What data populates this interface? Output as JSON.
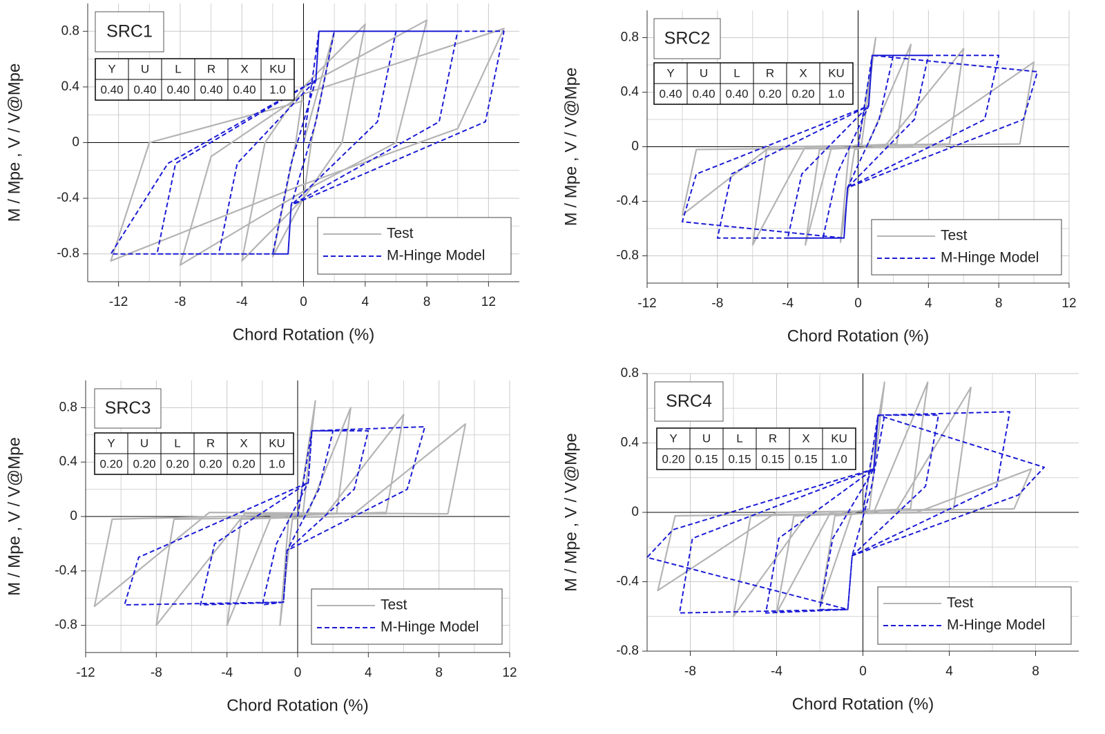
{
  "chart_data": [
    {
      "type": "line",
      "label": "SRC1",
      "x_label": "Chord Rotation (%)",
      "y_label": "M / Mpe , V / V@Mpe",
      "xlim": [
        -14,
        14
      ],
      "ylim": [
        -1,
        1
      ],
      "xticks": [
        -12,
        -8,
        -4,
        0,
        4,
        8,
        12
      ],
      "yticks": [
        -0.8,
        -0.4,
        0,
        0.4,
        0.8
      ],
      "grid": true,
      "legend": "lower right",
      "params": {
        "headers": [
          "Y",
          "U",
          "L",
          "R",
          "X",
          "KU"
        ],
        "values": [
          "0.40",
          "0.40",
          "0.40",
          "0.40",
          "0.40",
          "1.0"
        ]
      },
      "series": [
        {
          "name": "Test",
          "color": "#b4b4b4",
          "style": "solid",
          "x": [
            0,
            2,
            0.5,
            0,
            -2,
            -0.5,
            0,
            4,
            2.5,
            0,
            -4,
            -2.5,
            0,
            8,
            6,
            0,
            -8,
            -6,
            0,
            13,
            10,
            0,
            -12.5,
            -10,
            0
          ],
          "values": [
            0,
            0.8,
            0,
            -0.4,
            -0.82,
            0,
            0.4,
            0.85,
            0,
            -0.4,
            -0.85,
            0,
            0.4,
            0.88,
            0,
            -0.35,
            -0.88,
            -0.1,
            0.35,
            0.82,
            0.1,
            -0.3,
            -0.85,
            0,
            0.3
          ]
        },
        {
          "name": "M-Hinge Model",
          "color": "#1a1ad6",
          "style": "dashed",
          "x": [
            0,
            1,
            2,
            0.8,
            -0.8,
            -1,
            -2,
            -0.8,
            0.8,
            1,
            6,
            4.8,
            -0.8,
            -1,
            -5.5,
            -4.3,
            0.8,
            1,
            10,
            8.8,
            -0.8,
            -1,
            -9.5,
            -8.3,
            0.8,
            1,
            13,
            11.8,
            -0.8,
            -1,
            -12.5,
            -8.8,
            0.8
          ],
          "values": [
            0,
            0.8,
            0.8,
            0.15,
            -0.45,
            -0.8,
            -0.8,
            -0.15,
            0.45,
            0.8,
            0.8,
            0.15,
            -0.45,
            -0.8,
            -0.8,
            -0.15,
            0.45,
            0.8,
            0.8,
            0.15,
            -0.45,
            -0.8,
            -0.8,
            -0.15,
            0.45,
            0.8,
            0.8,
            0.15,
            -0.45,
            -0.8,
            -0.8,
            -0.15,
            0.45
          ]
        }
      ]
    },
    {
      "type": "line",
      "label": "SRC2",
      "x_label": "Chord Rotation (%)",
      "y_label": "M / Mpe , V / V@Mpe",
      "xlim": [
        -12,
        12
      ],
      "ylim": [
        -1,
        1
      ],
      "xticks": [
        -12,
        -8,
        -4,
        0,
        4,
        8,
        12
      ],
      "yticks": [
        -0.8,
        -0.4,
        0,
        0.4,
        0.8
      ],
      "grid": true,
      "legend": "lower right",
      "params": {
        "headers": [
          "Y",
          "U",
          "L",
          "R",
          "X",
          "KU"
        ],
        "values": [
          "0.40",
          "0.40",
          "0.40",
          "0.20",
          "0.20",
          "1.0"
        ]
      },
      "series": [
        {
          "name": "Test",
          "color": "#b4b4b4",
          "style": "solid",
          "x": [
            0,
            1,
            0.2,
            -0.5,
            -1,
            -0.2,
            0.5,
            3,
            2.2,
            -1.5,
            -3,
            -2.2,
            1.5,
            6,
            5.2,
            -3,
            -6,
            -5.2,
            3,
            10,
            9.2,
            -5,
            -10,
            -9.2,
            5
          ],
          "values": [
            0,
            0.8,
            0.02,
            0,
            -0.7,
            -0.02,
            0,
            0.75,
            0.02,
            0,
            -0.72,
            -0.02,
            0,
            0.72,
            0.02,
            0,
            -0.72,
            -0.02,
            0,
            0.62,
            0.02,
            0,
            -0.5,
            -0.02,
            0
          ]
        },
        {
          "name": "M-Hinge Model",
          "color": "#1a1ad6",
          "style": "dashed",
          "x": [
            0,
            0.8,
            2,
            1.2,
            -0.6,
            -0.8,
            -2,
            -1.2,
            0.6,
            0.8,
            4,
            3.2,
            -0.6,
            -0.8,
            -4,
            -3.2,
            0.6,
            0.8,
            8,
            7.2,
            -0.6,
            -0.8,
            -8,
            -7.2,
            0.6,
            0.8,
            10.2,
            9.4,
            -0.6,
            -0.8,
            -10,
            -9.2,
            0.6
          ],
          "values": [
            0,
            0.67,
            0.67,
            0.2,
            -0.3,
            -0.67,
            -0.67,
            -0.2,
            0.3,
            0.67,
            0.67,
            0.2,
            -0.3,
            -0.67,
            -0.67,
            -0.2,
            0.3,
            0.67,
            0.67,
            0.2,
            -0.3,
            -0.67,
            -0.67,
            -0.2,
            0.3,
            0.67,
            0.55,
            0.2,
            -0.3,
            -0.67,
            -0.55,
            -0.2,
            0.3
          ]
        }
      ]
    },
    {
      "type": "line",
      "label": "SRC3",
      "x_label": "Chord Rotation (%)",
      "y_label": "M / Mpe , V / V@Mpe",
      "xlim": [
        -12,
        12
      ],
      "ylim": [
        -1,
        1
      ],
      "xticks": [
        -12,
        -8,
        -4,
        0,
        4,
        8,
        12
      ],
      "yticks": [
        -0.8,
        -0.4,
        0,
        0.4,
        0.8
      ],
      "grid": true,
      "legend": "lower right",
      "params": {
        "headers": [
          "Y",
          "U",
          "L",
          "R",
          "X",
          "KU"
        ],
        "values": [
          "0.20",
          "0.20",
          "0.20",
          "0.20",
          "0.20",
          "1.0"
        ]
      },
      "series": [
        {
          "name": "Test",
          "color": "#b4b4b4",
          "style": "solid",
          "x": [
            0,
            1,
            0.3,
            -0.5,
            -1,
            -0.3,
            0.5,
            3,
            2.2,
            -1.5,
            -4,
            -3.2,
            1.5,
            6,
            5,
            -3,
            -8,
            -7,
            3,
            9.5,
            8.5,
            -5,
            -11.5,
            -10.5,
            5
          ],
          "values": [
            0,
            0.85,
            0.02,
            0,
            -0.8,
            -0.02,
            0,
            0.8,
            0.02,
            0,
            -0.8,
            -0.02,
            0,
            0.75,
            0.02,
            0.02,
            -0.8,
            -0.02,
            0,
            0.68,
            0.02,
            0.03,
            -0.66,
            -0.02,
            0.03
          ]
        },
        {
          "name": "M-Hinge Model",
          "color": "#1a1ad6",
          "style": "dashed",
          "x": [
            0,
            0.8,
            2,
            1.2,
            -0.6,
            -0.8,
            -2,
            -1.2,
            0.6,
            0.8,
            4,
            3.2,
            -0.6,
            -0.8,
            -5.5,
            -4.7,
            0.6,
            0.8,
            7.2,
            6.2,
            -0.6,
            -0.8,
            -9.8,
            -9,
            0.6
          ],
          "values": [
            0,
            0.63,
            0.63,
            0.2,
            -0.25,
            -0.63,
            -0.65,
            -0.2,
            0.25,
            0.63,
            0.63,
            0.2,
            -0.25,
            -0.63,
            -0.65,
            -0.2,
            0.25,
            0.63,
            0.66,
            0.2,
            -0.25,
            -0.63,
            -0.65,
            -0.3,
            0.25
          ]
        }
      ]
    },
    {
      "type": "line",
      "label": "SRC4",
      "x_label": "Chord Rotation (%)",
      "y_label": "M / Mpe , V / V@Mpe",
      "xlim": [
        -10,
        10
      ],
      "ylim": [
        -0.8,
        0.8
      ],
      "xticks": [
        -8,
        -4,
        0,
        4,
        8
      ],
      "yticks": [
        -0.8,
        -0.4,
        0,
        0.4,
        0.8
      ],
      "grid": true,
      "legend": "lower right",
      "params": {
        "headers": [
          "Y",
          "U",
          "L",
          "R",
          "X",
          "KU"
        ],
        "values": [
          "0.20",
          "0.15",
          "0.15",
          "0.15",
          "0.15",
          "1.0"
        ]
      },
      "series": [
        {
          "name": "Test",
          "color": "#b4b4b4",
          "style": "solid",
          "x": [
            0,
            1,
            0.3,
            -0.5,
            -2,
            -1.3,
            0.5,
            3,
            2.2,
            -1.5,
            -4,
            -3.2,
            1.5,
            5,
            4.2,
            -2.5,
            -6,
            -5.2,
            2.5,
            7.8,
            7,
            -4,
            -9.5,
            -8.7,
            4
          ],
          "values": [
            0,
            0.75,
            0.02,
            0,
            -0.55,
            -0.02,
            0,
            0.75,
            0.02,
            0,
            -0.58,
            -0.02,
            0,
            0.72,
            0.02,
            0,
            -0.6,
            -0.02,
            0,
            0.25,
            0.02,
            0,
            -0.45,
            -0.02,
            0
          ]
        },
        {
          "name": "M-Hinge Model",
          "color": "#1a1ad6",
          "style": "dashed",
          "x": [
            0,
            0.7,
            1,
            0.4,
            -0.5,
            -0.7,
            -2,
            -1.4,
            0.5,
            0.7,
            3.5,
            2.9,
            -0.5,
            -0.7,
            -4.5,
            -3.9,
            0.5,
            0.7,
            6.8,
            6.2,
            -0.5,
            -0.7,
            -8.5,
            -7.9,
            0.5,
            0.7,
            8.4,
            7.2,
            -0.5,
            -0.7,
            -10,
            -8.8,
            0.5
          ],
          "values": [
            0,
            0.56,
            0.56,
            0.15,
            -0.25,
            -0.56,
            -0.56,
            -0.15,
            0.25,
            0.56,
            0.56,
            0.15,
            -0.25,
            -0.56,
            -0.58,
            -0.15,
            0.25,
            0.56,
            0.58,
            0.15,
            -0.25,
            -0.56,
            -0.58,
            -0.15,
            0.25,
            0.56,
            0.26,
            0.1,
            -0.25,
            -0.56,
            -0.26,
            -0.1,
            0.25
          ]
        }
      ]
    }
  ]
}
